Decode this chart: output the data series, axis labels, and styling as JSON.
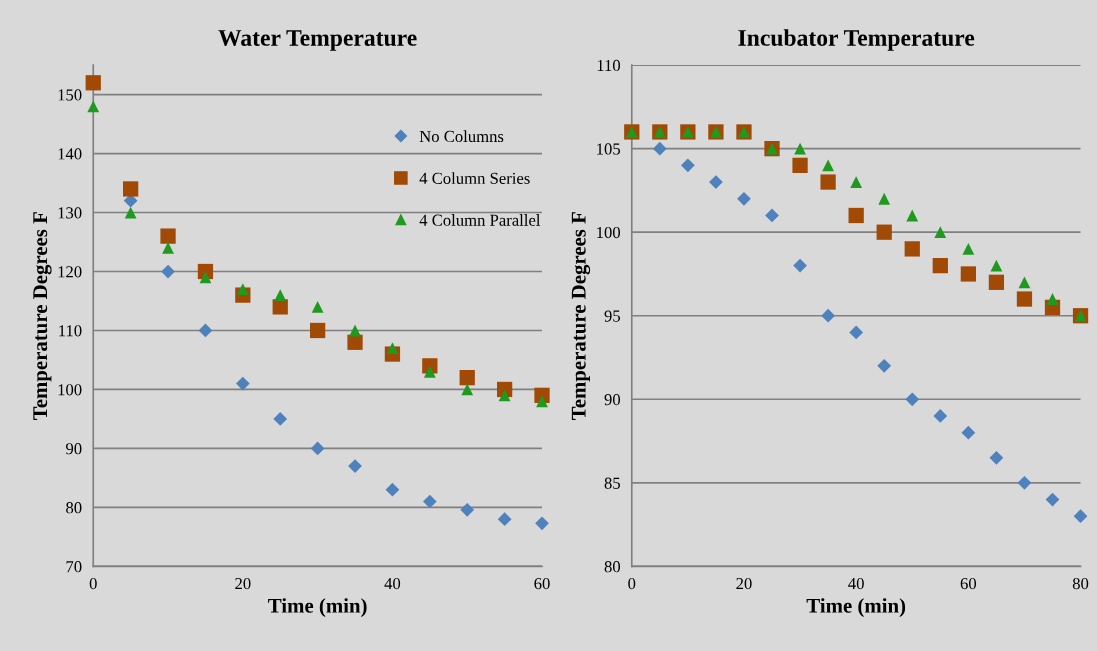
{
  "chart_data": [
    {
      "type": "scatter",
      "title": "Water Temperature",
      "xlabel": "Time (min)",
      "ylabel": "Temperature Degrees F",
      "x": [
        0,
        5,
        10,
        15,
        20,
        25,
        30,
        35,
        40,
        45,
        50,
        55,
        60
      ],
      "series": [
        {
          "name": "No Columns",
          "color": "#4f81bd",
          "marker": "diamond",
          "values": [
            null,
            132,
            120,
            110,
            101,
            95,
            90,
            87,
            83,
            81,
            79.6,
            78,
            77.3
          ]
        },
        {
          "name": "4 Column Series",
          "color": "#a04a06",
          "marker": "square",
          "values": [
            152,
            134,
            126,
            120,
            116,
            114,
            110,
            108,
            106,
            104,
            102,
            100,
            99
          ]
        },
        {
          "name": "4 Column Parallel",
          "color": "#1f9a1f",
          "marker": "triangle",
          "values": [
            148,
            130,
            124,
            119,
            117,
            116,
            114,
            110,
            107,
            103,
            100,
            99,
            98
          ]
        }
      ],
      "xlim": [
        0,
        60
      ],
      "xticks": [
        0,
        20,
        40,
        60
      ],
      "ylim": [
        70,
        155
      ],
      "yticks": [
        70,
        80,
        90,
        100,
        110,
        120,
        130,
        140,
        150
      ],
      "grid": "y",
      "legend": "top right"
    },
    {
      "type": "scatter",
      "title": "Incubator Temperature",
      "xlabel": "Time (min)",
      "ylabel": "Temperature Degrees F",
      "x": [
        0,
        5,
        10,
        15,
        20,
        25,
        30,
        35,
        40,
        45,
        50,
        55,
        60,
        65,
        70,
        75,
        80
      ],
      "series": [
        {
          "color": "#4f81bd",
          "marker": "diamond",
          "values": [
            null,
            105,
            104,
            103,
            102,
            101,
            98,
            95,
            94,
            92,
            90,
            89,
            88,
            86.5,
            85,
            84,
            83
          ]
        },
        {
          "color": "#a04a06",
          "marker": "square",
          "values": [
            106,
            106,
            106,
            106,
            106,
            105,
            104,
            103,
            101,
            100,
            99,
            98,
            97.5,
            97,
            96,
            95.5,
            95
          ]
        },
        {
          "color": "#1f9a1f",
          "marker": "triangle",
          "values": [
            106,
            106,
            106,
            106,
            106,
            105,
            105,
            104,
            103,
            102,
            101,
            100,
            99,
            98,
            97,
            96,
            95
          ]
        }
      ],
      "xlim": [
        0,
        80
      ],
      "xticks": [
        0,
        20,
        40,
        60,
        80
      ],
      "ylim": [
        80,
        110
      ],
      "yticks": [
        80,
        85,
        90,
        95,
        100,
        105,
        110
      ],
      "grid": "y"
    }
  ]
}
